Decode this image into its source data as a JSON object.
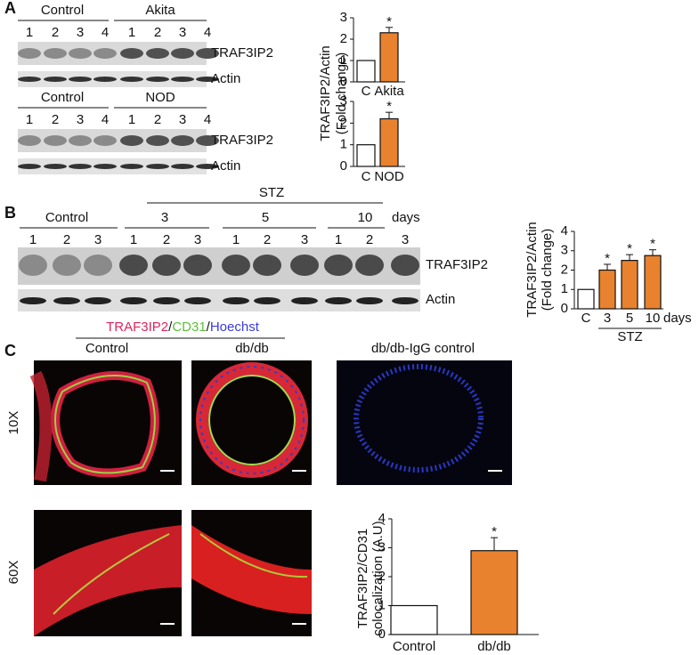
{
  "panel_labels": [
    "A",
    "B",
    "C"
  ],
  "blots_a": [
    {
      "groups": [
        "Control",
        "Akita"
      ],
      "lanes": [
        "1",
        "2",
        "3",
        "4",
        "1",
        "2",
        "3",
        "4"
      ],
      "bands": [
        "TRAF3IP2",
        "Actin"
      ]
    },
    {
      "groups": [
        "Control",
        "NOD"
      ],
      "lanes": [
        "1",
        "2",
        "3",
        "4",
        "1",
        "2",
        "3",
        "4"
      ],
      "bands": [
        "TRAF3IP2",
        "Actin"
      ]
    }
  ],
  "blot_b": {
    "treatment": "STZ",
    "control": "Control",
    "doses": [
      "3",
      "5",
      "10"
    ],
    "unit": "days",
    "lanes": [
      "1",
      "2",
      "3",
      "1",
      "2",
      "3",
      "1",
      "2",
      "3",
      "1",
      "2",
      "3"
    ],
    "bands": [
      "TRAF3IP2",
      "Actin"
    ]
  },
  "staining": {
    "label_parts": [
      "TRAF3IP2",
      "/",
      "CD31",
      "/",
      "Hoechst"
    ],
    "columns": [
      "Control",
      "db/db",
      "db/db-IgG control"
    ],
    "magnifications": [
      "10X",
      "60X"
    ]
  },
  "chart_data": [
    {
      "type": "bar",
      "ylabel": [
        "TRAF3IP2/Actin",
        "(Fold change)"
      ],
      "categories": [
        "C",
        "Akita"
      ],
      "values": [
        1,
        2.3
      ],
      "errors": [
        0,
        0.25
      ],
      "significance": [
        null,
        "*"
      ],
      "colors": [
        "#ffffff",
        "#e8822e"
      ],
      "ylim": [
        0,
        3
      ],
      "yticks": [
        0,
        1,
        2,
        3
      ]
    },
    {
      "type": "bar",
      "categories": [
        "C",
        "NOD"
      ],
      "values": [
        1,
        2.2
      ],
      "errors": [
        0,
        0.3
      ],
      "significance": [
        null,
        "*"
      ],
      "colors": [
        "#ffffff",
        "#e8822e"
      ],
      "ylim": [
        0,
        3
      ],
      "yticks": [
        0,
        1,
        2,
        3
      ]
    },
    {
      "type": "bar",
      "ylabel": [
        "TRAF3IP2/Actin",
        "(Fold change)"
      ],
      "categories": [
        "C",
        "3",
        "5",
        "10"
      ],
      "x_unit": "days",
      "group_label": "STZ",
      "values": [
        1,
        2.0,
        2.5,
        2.75
      ],
      "errors": [
        0,
        0.3,
        0.3,
        0.3
      ],
      "significance": [
        null,
        "*",
        "*",
        "*"
      ],
      "colors": [
        "#ffffff",
        "#e8822e",
        "#e8822e",
        "#e8822e"
      ],
      "ylim": [
        0,
        4
      ],
      "yticks": [
        0,
        1,
        2,
        3,
        4
      ]
    },
    {
      "type": "bar",
      "ylabel": [
        "TRAF3IP2/CD31",
        "colocalization (A.U)"
      ],
      "categories": [
        "Control",
        "db/db"
      ],
      "values": [
        1,
        2.9
      ],
      "errors": [
        0,
        0.45
      ],
      "significance": [
        null,
        "*"
      ],
      "colors": [
        "#ffffff",
        "#e8822e"
      ],
      "ylim": [
        0,
        4
      ],
      "yticks": [
        0,
        1,
        2,
        3,
        4
      ]
    }
  ]
}
